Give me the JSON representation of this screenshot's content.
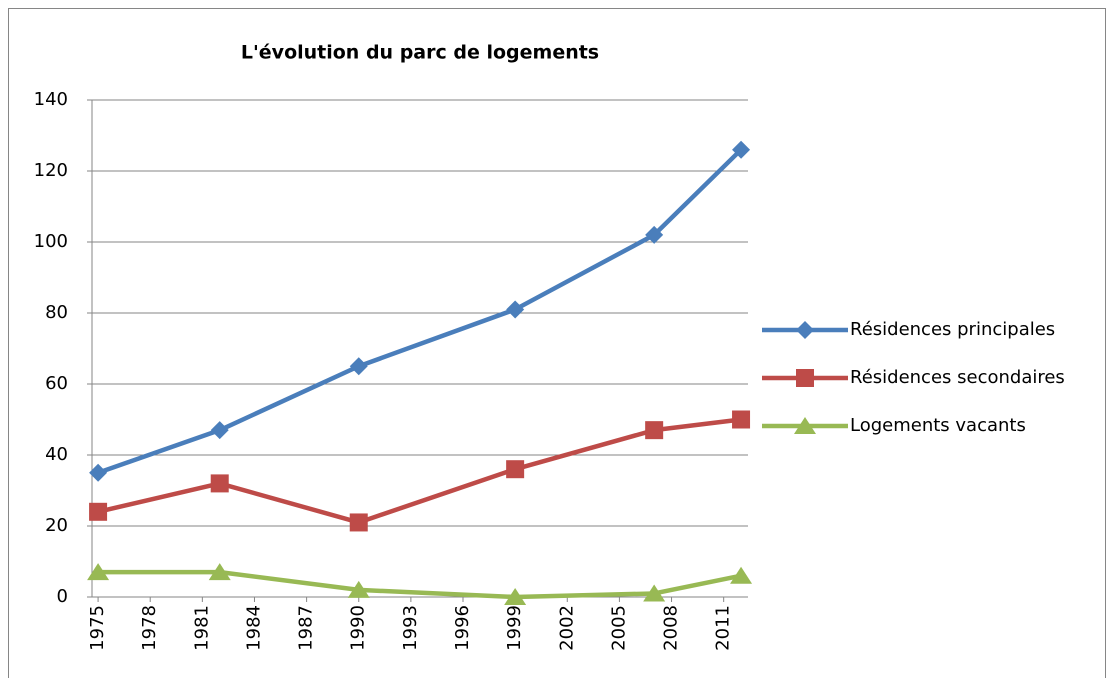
{
  "chart_data": {
    "type": "line",
    "title": "L'évolution du parc de logements",
    "x": [
      1975,
      1982,
      1990,
      1999,
      2007,
      2012
    ],
    "series": [
      {
        "name": "Résidences principales",
        "color": "#4a7ebb",
        "marker": "diamond",
        "values": [
          35,
          47,
          65,
          81,
          102,
          126
        ]
      },
      {
        "name": "Résidences secondaires",
        "color": "#be4b48",
        "marker": "square",
        "values": [
          24,
          32,
          21,
          36,
          47,
          50
        ]
      },
      {
        "name": "Logements vacants",
        "color": "#98b954",
        "marker": "triangle",
        "values": [
          7,
          7,
          2,
          0,
          1,
          6
        ]
      }
    ],
    "xlim": [
      1974.65,
      2012.4
    ],
    "xticks": [
      1975,
      1978,
      1981,
      1984,
      1987,
      1990,
      1993,
      1996,
      1999,
      2002,
      2005,
      2008,
      2011
    ],
    "ylim": [
      0,
      140
    ],
    "yticks": [
      0,
      20,
      40,
      60,
      80,
      100,
      120,
      140
    ],
    "grid": true,
    "legend": "right"
  }
}
